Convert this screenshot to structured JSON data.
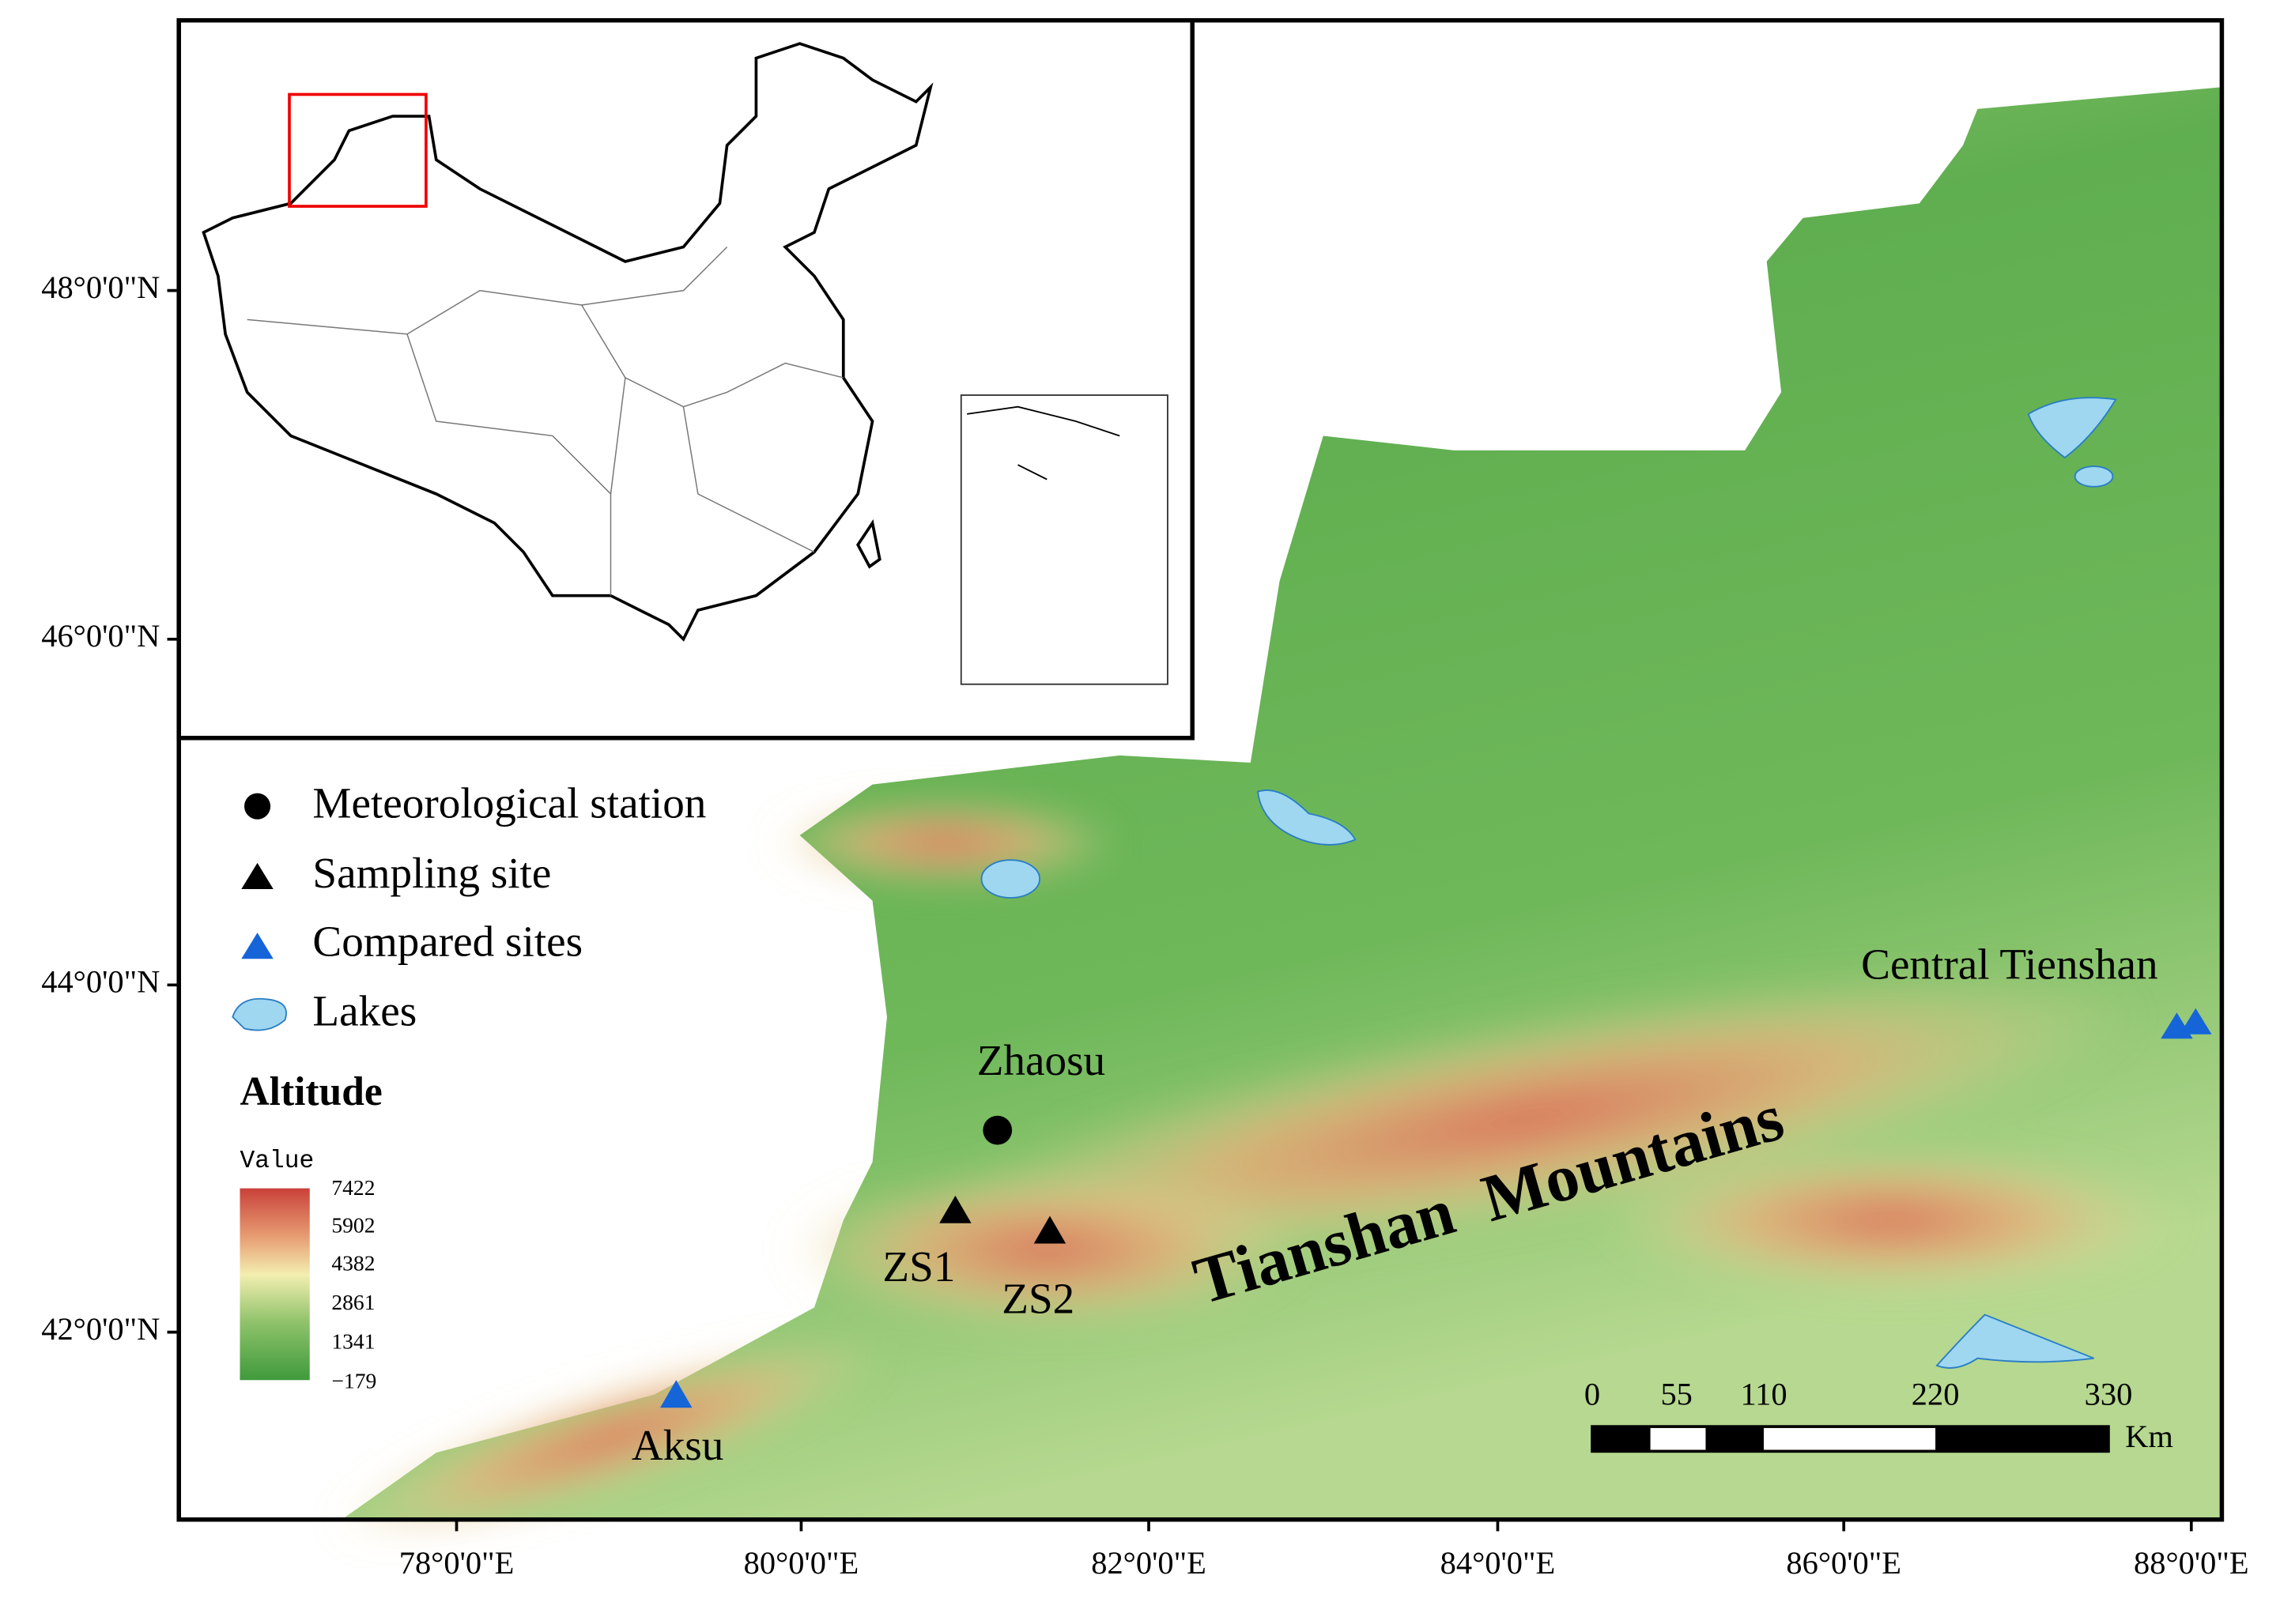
{
  "latitude_labels": [
    "48°0'0\"N",
    "46°0'0\"N",
    "44°0'0\"N",
    "42°0'0\"N"
  ],
  "longitude_labels": [
    "78°0'0\"E",
    "80°0'0\"E",
    "82°0'0\"E",
    "84°0'0\"E",
    "86°0'0\"E",
    "88°0'0\"E"
  ],
  "legend": {
    "items": [
      "Meteorological station",
      "Sampling site",
      "Compared sites",
      "Lakes"
    ],
    "altitude_title": "Altitude",
    "colorbar_title": "Value",
    "colorbar_labels": [
      "7422",
      "5902",
      "4382",
      "2861",
      "1341",
      "−179"
    ]
  },
  "places": {
    "zhaosu": "Zhaosu",
    "zs1": "ZS1",
    "zs2": "ZS2",
    "aksu": "Aksu",
    "central": "Central Tienshan",
    "range": "Tianshan  Mountains"
  },
  "scale_bar": {
    "labels": [
      "0",
      "55",
      "110",
      "220",
      "330"
    ],
    "unit": "Km"
  }
}
